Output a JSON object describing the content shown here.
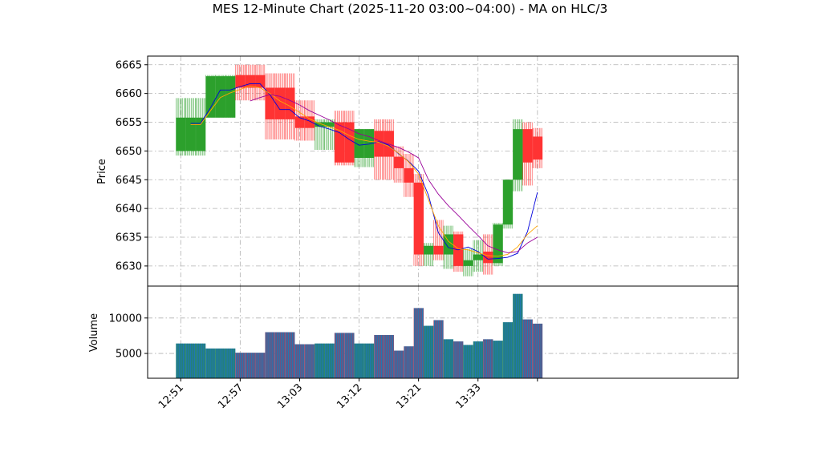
{
  "chart_data": {
    "type": "candlestick",
    "title": "MES 12-Minute Chart (2025-11-20 03:00~04:00) - MA on HLC/3",
    "price_panel": {
      "ylabel": "Price",
      "ylim": [
        6626.5,
        6666.5
      ],
      "yticks": [
        6630,
        6635,
        6640,
        6645,
        6650,
        6655,
        6660,
        6665
      ],
      "grid": true
    },
    "volume_panel": {
      "ylabel": "Volume",
      "ylim": [
        1500,
        14500
      ],
      "yticks": [
        5000,
        10000
      ],
      "ytick_labels": [
        "5000",
        "10000"
      ]
    },
    "x_axis": {
      "tick_labels": [
        "12:51",
        "12:57",
        "13:03",
        "13:12",
        "13:21",
        "13:33",
        ""
      ],
      "tick_bar_index": [
        0,
        6,
        12,
        18,
        24,
        30,
        36
      ]
    },
    "colors": {
      "up": "#2ca02c",
      "down": "#ff3333",
      "ma_fast": "#0000dd",
      "ma_mid": "#ffa500",
      "ma_slow": "#990099",
      "volume_fill": "#1f77b4",
      "volume_up_edge": "#2a8a3a",
      "volume_down_edge": "#c0304a"
    },
    "candles": [
      {
        "open": 6650.0,
        "high": 6659.2,
        "low": 6649.2,
        "close": 6655.8,
        "volume": 6400
      },
      {
        "open": 6650.0,
        "high": 6659.2,
        "low": 6649.2,
        "close": 6655.8,
        "volume": 6400
      },
      {
        "open": 6650.0,
        "high": 6659.2,
        "low": 6649.2,
        "close": 6655.8,
        "volume": 6400
      },
      {
        "open": 6655.8,
        "high": 6663.2,
        "low": 6655.8,
        "close": 6663.0,
        "volume": 5700
      },
      {
        "open": 6655.8,
        "high": 6663.2,
        "low": 6655.8,
        "close": 6663.0,
        "volume": 5700
      },
      {
        "open": 6655.8,
        "high": 6663.2,
        "low": 6655.8,
        "close": 6663.0,
        "volume": 5700
      },
      {
        "open": 6663.2,
        "high": 6665.0,
        "low": 6658.8,
        "close": 6661.0,
        "volume": 5100
      },
      {
        "open": 6663.2,
        "high": 6665.0,
        "low": 6658.8,
        "close": 6661.0,
        "volume": 5100
      },
      {
        "open": 6663.2,
        "high": 6665.0,
        "low": 6658.8,
        "close": 6661.0,
        "volume": 5100
      },
      {
        "open": 6661.0,
        "high": 6663.5,
        "low": 6652.0,
        "close": 6655.5,
        "volume": 8000
      },
      {
        "open": 6661.0,
        "high": 6663.5,
        "low": 6652.0,
        "close": 6655.5,
        "volume": 8000
      },
      {
        "open": 6661.0,
        "high": 6663.5,
        "low": 6652.0,
        "close": 6655.5,
        "volume": 8000
      },
      {
        "open": 6656.0,
        "high": 6658.8,
        "low": 6651.8,
        "close": 6654.0,
        "volume": 6300
      },
      {
        "open": 6656.0,
        "high": 6658.8,
        "low": 6651.8,
        "close": 6654.0,
        "volume": 6300
      },
      {
        "open": 6654.2,
        "high": 6655.5,
        "low": 6650.2,
        "close": 6655.0,
        "volume": 6400
      },
      {
        "open": 6654.2,
        "high": 6655.5,
        "low": 6650.2,
        "close": 6655.0,
        "volume": 6400
      },
      {
        "open": 6655.0,
        "high": 6657.0,
        "low": 6647.5,
        "close": 6648.0,
        "volume": 7900
      },
      {
        "open": 6655.0,
        "high": 6657.0,
        "low": 6647.5,
        "close": 6648.0,
        "volume": 7900
      },
      {
        "open": 6648.8,
        "high": 6653.8,
        "low": 6647.2,
        "close": 6653.8,
        "volume": 6400
      },
      {
        "open": 6648.8,
        "high": 6653.8,
        "low": 6647.2,
        "close": 6653.8,
        "volume": 6400
      },
      {
        "open": 6653.5,
        "high": 6655.5,
        "low": 6645.0,
        "close": 6649.0,
        "volume": 7600
      },
      {
        "open": 6653.5,
        "high": 6655.5,
        "low": 6645.0,
        "close": 6649.0,
        "volume": 7600
      },
      {
        "open": 6649.0,
        "high": 6650.8,
        "low": 6644.5,
        "close": 6647.0,
        "volume": 5400
      },
      {
        "open": 6647.0,
        "high": 6649.5,
        "low": 6642.0,
        "close": 6644.5,
        "volume": 6000
      },
      {
        "open": 6644.5,
        "high": 6646.0,
        "low": 6630.0,
        "close": 6632.0,
        "volume": 11400
      },
      {
        "open": 6632.0,
        "high": 6634.0,
        "low": 6630.0,
        "close": 6633.5,
        "volume": 8900
      },
      {
        "open": 6633.5,
        "high": 6638.0,
        "low": 6631.0,
        "close": 6632.0,
        "volume": 9700
      },
      {
        "open": 6632.0,
        "high": 6637.0,
        "low": 6629.5,
        "close": 6635.5,
        "volume": 7000
      },
      {
        "open": 6635.5,
        "high": 6636.0,
        "low": 6629.0,
        "close": 6630.0,
        "volume": 6700
      },
      {
        "open": 6630.0,
        "high": 6633.0,
        "low": 6628.2,
        "close": 6631.0,
        "volume": 6200
      },
      {
        "open": 6631.0,
        "high": 6634.5,
        "low": 6629.0,
        "close": 6632.0,
        "volume": 6700
      },
      {
        "open": 6632.5,
        "high": 6635.5,
        "low": 6628.5,
        "close": 6630.5,
        "volume": 7000
      },
      {
        "open": 6630.5,
        "high": 6637.5,
        "low": 6630.0,
        "close": 6637.2,
        "volume": 6800
      },
      {
        "open": 6637.2,
        "high": 6645.0,
        "low": 6636.5,
        "close": 6645.0,
        "volume": 9400
      },
      {
        "open": 6645.0,
        "high": 6655.5,
        "low": 6643.0,
        "close": 6653.8,
        "volume": 13400
      },
      {
        "open": 6653.8,
        "high": 6655.0,
        "low": 6644.0,
        "close": 6648.0,
        "volume": 9800
      },
      {
        "open": 6652.5,
        "high": 6654.0,
        "low": 6647.0,
        "close": 6648.5,
        "volume": 9200
      }
    ],
    "ma_series": [
      {
        "color": "#0000dd",
        "start_index": 1,
        "values": [
          6654.8,
          6654.8,
          6657.5,
          6660.6,
          6660.6,
          6661.2,
          6661.7,
          6661.7,
          6659.8,
          6657.2,
          6657.2,
          6655.8,
          6655.2,
          6654.3,
          6653.8,
          6653.2,
          6652.0,
          6651.0,
          6651.2,
          6651.6,
          6651.0,
          6649.5,
          6648.2,
          6646.5,
          6642.3,
          6635.8,
          6633.2,
          6632.8,
          6633.3,
          6632.5,
          6631.2,
          6631.3,
          6631.5,
          6632.2,
          6636.0,
          6642.8
        ]
      },
      {
        "color": "#ffa500",
        "start_index": 1,
        "values": [
          6654.6,
          6654.6,
          6657.0,
          6659.3,
          6660.1,
          6660.7,
          6661.3,
          6661.0,
          6660.0,
          6658.7,
          6657.8,
          6656.7,
          6655.6,
          6654.8,
          6654.2,
          6653.6,
          6652.7,
          6652.0,
          6651.7,
          6651.5,
          6650.8,
          6649.6,
          6648.1,
          6646.0,
          6641.5,
          6637.0,
          6634.3,
          6633.0,
          6632.8,
          6632.3,
          6631.8,
          6631.7,
          6632.0,
          6633.3,
          6635.5,
          6637.0
        ]
      },
      {
        "color": "#990099",
        "start_index": 7,
        "values": [
          6658.7,
          6659.3,
          6659.8,
          6659.5,
          6658.8,
          6658.0,
          6657.0,
          6656.2,
          6655.4,
          6654.5,
          6653.8,
          6653.0,
          6652.5,
          6651.8,
          6651.2,
          6650.6,
          6649.8,
          6648.8,
          6645.0,
          6642.5,
          6640.5,
          6638.8,
          6637.0,
          6635.3,
          6633.5,
          6632.8,
          6632.3,
          6632.5,
          6634.0,
          6635.0
        ]
      }
    ]
  }
}
